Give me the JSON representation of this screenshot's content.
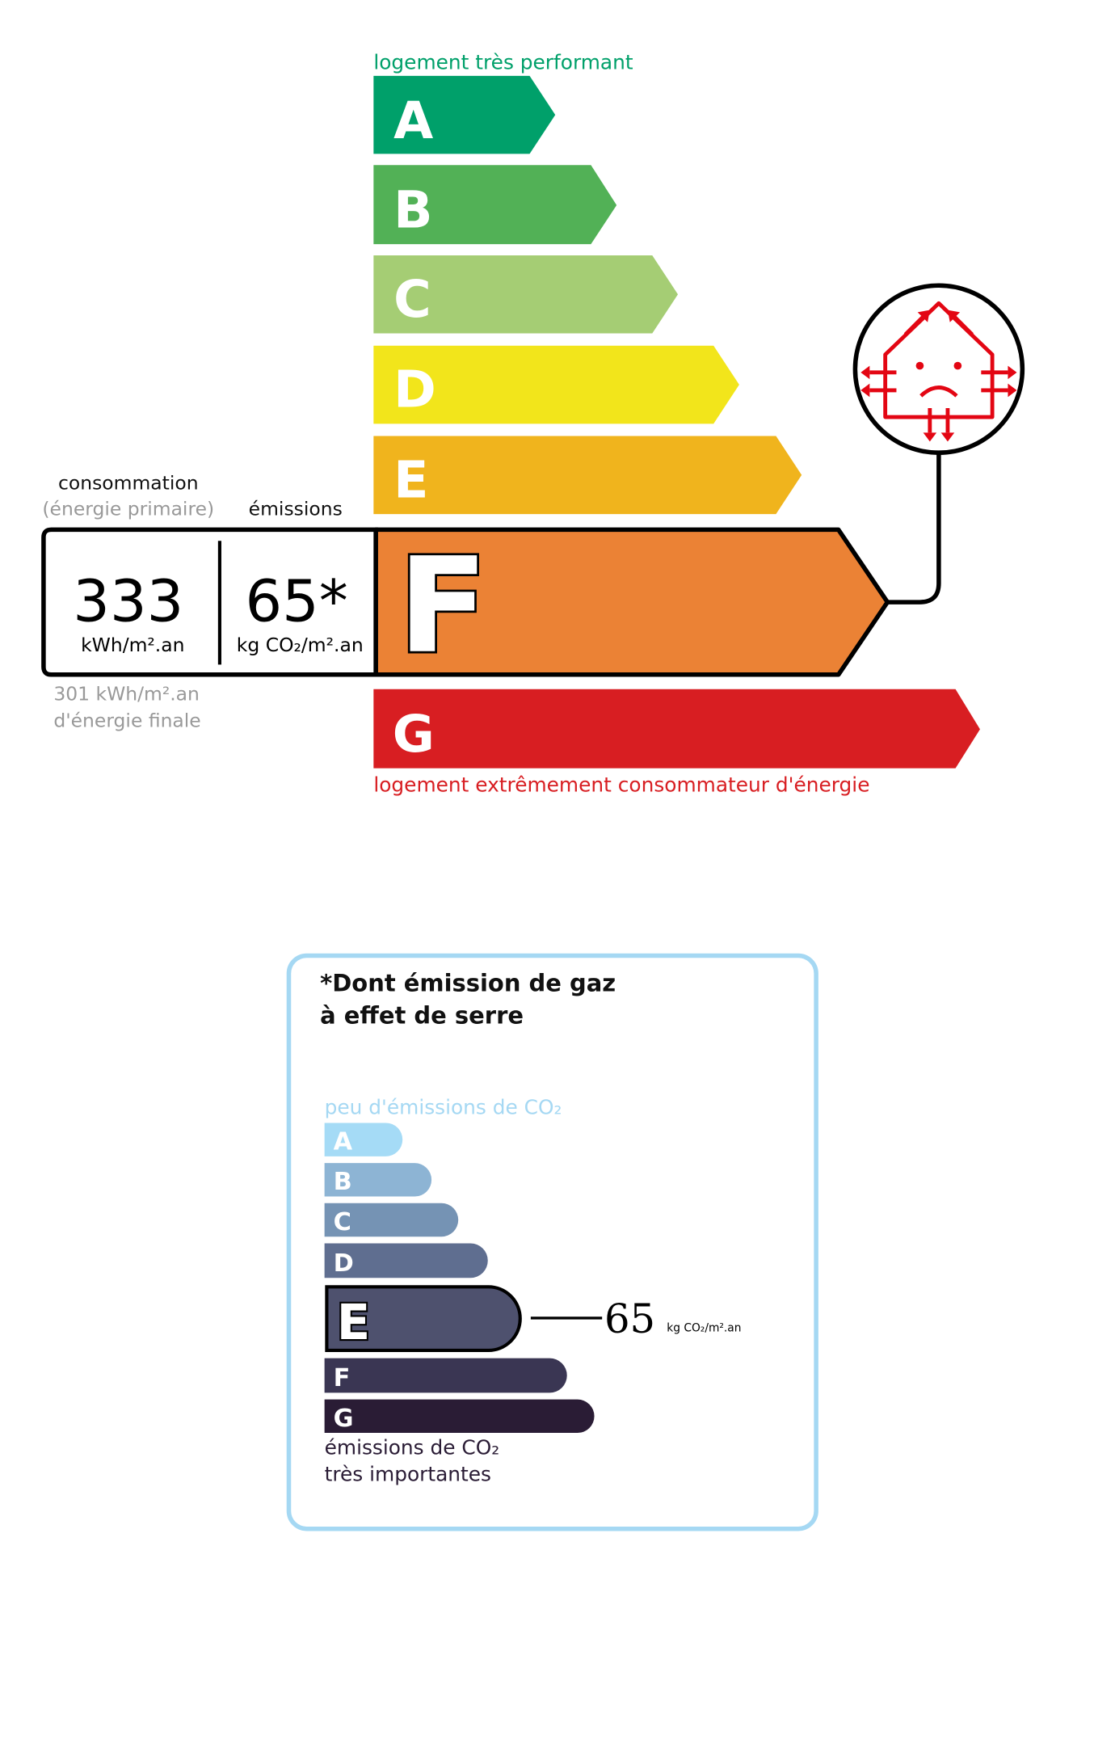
{
  "energy": {
    "top_label": "logement très performant",
    "bottom_label": "logement extrêmement consommateur d'énergie",
    "classes": [
      {
        "letter": "A",
        "color": "#00a06a"
      },
      {
        "letter": "B",
        "color": "#52b156"
      },
      {
        "letter": "C",
        "color": "#a5cd74"
      },
      {
        "letter": "D",
        "color": "#f2e51b"
      },
      {
        "letter": "E",
        "color": "#f0b41d"
      },
      {
        "letter": "F",
        "color": "#eb8235"
      },
      {
        "letter": "G",
        "color": "#d81e22"
      }
    ],
    "current_class": "F",
    "consumption_label": "consommation",
    "consumption_sublabel": "(énergie primaire)",
    "emissions_label": "émissions",
    "consumption_value": "333",
    "consumption_unit": "kWh/m².an",
    "emissions_value": "65*",
    "emissions_unit": "kg CO₂/m².an",
    "final_energy_value": "301 kWh/m².an",
    "final_energy_label": "d'énergie finale",
    "icon": "sad-house-heat-loss-icon"
  },
  "ghg": {
    "title_line1": "*Dont émission de gaz",
    "title_line2": "à effet de serre",
    "top_label": "peu d'émissions de CO₂",
    "bottom_label_line1": "émissions de CO₂",
    "bottom_label_line2": "très importantes",
    "classes": [
      {
        "letter": "A",
        "color": "#a5dbf6"
      },
      {
        "letter": "B",
        "color": "#8db4d4"
      },
      {
        "letter": "C",
        "color": "#7593b4"
      },
      {
        "letter": "D",
        "color": "#5f6e90"
      },
      {
        "letter": "E",
        "color": "#4e516e"
      },
      {
        "letter": "F",
        "color": "#3a3653"
      },
      {
        "letter": "G",
        "color": "#2a1c35"
      }
    ],
    "current_class": "E",
    "value": "65",
    "unit": "kg CO₂/m².an",
    "border_color": "#a5d8f3"
  }
}
